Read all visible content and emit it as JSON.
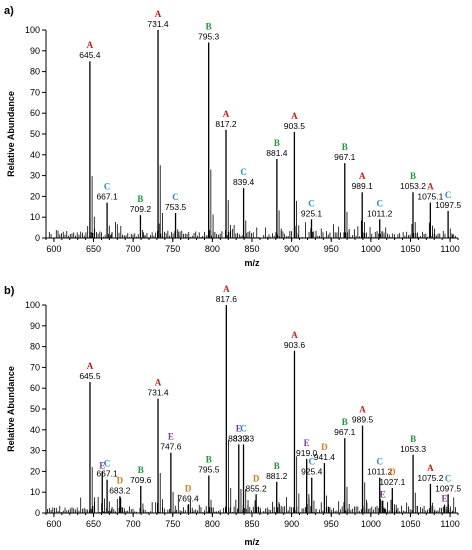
{
  "colors": {
    "A": "#d01818",
    "B": "#1a9c3c",
    "C": "#1b8fd0",
    "D": "#e07a12",
    "E": "#7a3aa8",
    "axis": "#000000"
  },
  "chart_data": [
    {
      "type": "bar",
      "panel_label": "a)",
      "xlabel": "m/z",
      "ylabel": "Relative Abundance",
      "xlim": [
        590,
        1110
      ],
      "ylim": [
        0,
        100
      ],
      "xticks": [
        600,
        650,
        700,
        750,
        800,
        850,
        900,
        950,
        1000,
        1050,
        1100
      ],
      "yticks": [
        0,
        10,
        20,
        30,
        40,
        50,
        60,
        70,
        80,
        90,
        100
      ],
      "peaks": [
        {
          "letter": "A",
          "value": "645.4",
          "x": 645.4,
          "y": 85
        },
        {
          "letter": "C",
          "value": "667.1",
          "x": 667.1,
          "y": 17
        },
        {
          "letter": "B",
          "value": "709.2",
          "x": 709.2,
          "y": 11
        },
        {
          "letter": "A",
          "value": "731.4",
          "x": 731.4,
          "y": 100
        },
        {
          "letter": "C",
          "value": "753.5",
          "x": 753.5,
          "y": 12
        },
        {
          "letter": "B",
          "value": "795.3",
          "x": 795.3,
          "y": 94
        },
        {
          "letter": "A",
          "value": "817.2",
          "x": 817.2,
          "y": 52
        },
        {
          "letter": "C",
          "value": "839.4",
          "x": 839.4,
          "y": 24
        },
        {
          "letter": "B",
          "value": "881.4",
          "x": 881.4,
          "y": 38
        },
        {
          "letter": "A",
          "value": "903.5",
          "x": 903.5,
          "y": 51
        },
        {
          "letter": "C",
          "value": "925.1",
          "x": 925.1,
          "y": 9
        },
        {
          "letter": "B",
          "value": "967.1",
          "x": 967.1,
          "y": 36
        },
        {
          "letter": "A",
          "value": "989.1",
          "x": 989.1,
          "y": 22
        },
        {
          "letter": "C",
          "value": "1011.2",
          "x": 1011.2,
          "y": 9
        },
        {
          "letter": "B",
          "value": "1053.2",
          "x": 1053.2,
          "y": 22
        },
        {
          "letter": "A",
          "value": "1075.1",
          "x": 1075.1,
          "y": 17
        },
        {
          "letter": "C",
          "value": "1097.5",
          "x": 1097.5,
          "y": 13
        }
      ]
    },
    {
      "type": "bar",
      "panel_label": "b)",
      "xlabel": "m/z",
      "ylabel": "Relative Abundance",
      "xlim": [
        590,
        1110
      ],
      "ylim": [
        0,
        100
      ],
      "xticks": [
        600,
        650,
        700,
        750,
        800,
        850,
        900,
        950,
        1000,
        1050,
        1100
      ],
      "yticks": [
        0,
        10,
        20,
        30,
        40,
        50,
        60,
        70,
        80,
        90,
        100
      ],
      "peaks": [
        {
          "letter": "A",
          "value": "645.5",
          "x": 645.5,
          "y": 63
        },
        {
          "letter": "E",
          "value": "",
          "x": 661.0,
          "y": 20
        },
        {
          "letter": "C",
          "value": "667.1",
          "x": 667.1,
          "y": 16
        },
        {
          "letter": "D",
          "value": "683.2",
          "x": 683.2,
          "y": 8
        },
        {
          "letter": "B",
          "value": "709.6",
          "x": 709.6,
          "y": 13
        },
        {
          "letter": "A",
          "value": "731.4",
          "x": 731.4,
          "y": 55
        },
        {
          "letter": "E",
          "value": "747.6",
          "x": 747.6,
          "y": 29
        },
        {
          "letter": "D",
          "value": "769.4",
          "x": 769.4,
          "y": 4
        },
        {
          "letter": "B",
          "value": "795.5",
          "x": 795.5,
          "y": 18
        },
        {
          "letter": "A",
          "value": "817.6",
          "x": 817.6,
          "y": 100
        },
        {
          "letter": "E",
          "value": "833.3",
          "x": 833.3,
          "y": 33
        },
        {
          "letter": "C",
          "value": "839.3",
          "x": 839.3,
          "y": 33
        },
        {
          "letter": "D",
          "value": "855.2",
          "x": 855.2,
          "y": 9
        },
        {
          "letter": "B",
          "value": "881.2",
          "x": 881.2,
          "y": 15
        },
        {
          "letter": "A",
          "value": "903.6",
          "x": 903.6,
          "y": 78
        },
        {
          "letter": "E",
          "value": "919.0",
          "x": 919.0,
          "y": 26
        },
        {
          "letter": "C",
          "value": "925.4",
          "x": 925.4,
          "y": 17
        },
        {
          "letter": "D",
          "value": "941.4",
          "x": 941.4,
          "y": 24
        },
        {
          "letter": "B",
          "value": "967.1",
          "x": 967.1,
          "y": 36
        },
        {
          "letter": "A",
          "value": "989.5",
          "x": 989.5,
          "y": 42
        },
        {
          "letter": "C",
          "value": "1011.2",
          "x": 1011.2,
          "y": 17
        },
        {
          "letter": "E",
          "value": "",
          "x": 1015.0,
          "y": 6
        },
        {
          "letter": "D",
          "value": "1027.1",
          "x": 1027.1,
          "y": 12
        },
        {
          "letter": "B",
          "value": "1053.3",
          "x": 1053.3,
          "y": 28
        },
        {
          "letter": "A",
          "value": "1075.2",
          "x": 1075.2,
          "y": 14
        },
        {
          "letter": "C",
          "value": "1097.5",
          "x": 1097.5,
          "y": 9
        },
        {
          "letter": "E",
          "value": "",
          "x": 1093.0,
          "y": 4
        }
      ]
    }
  ]
}
